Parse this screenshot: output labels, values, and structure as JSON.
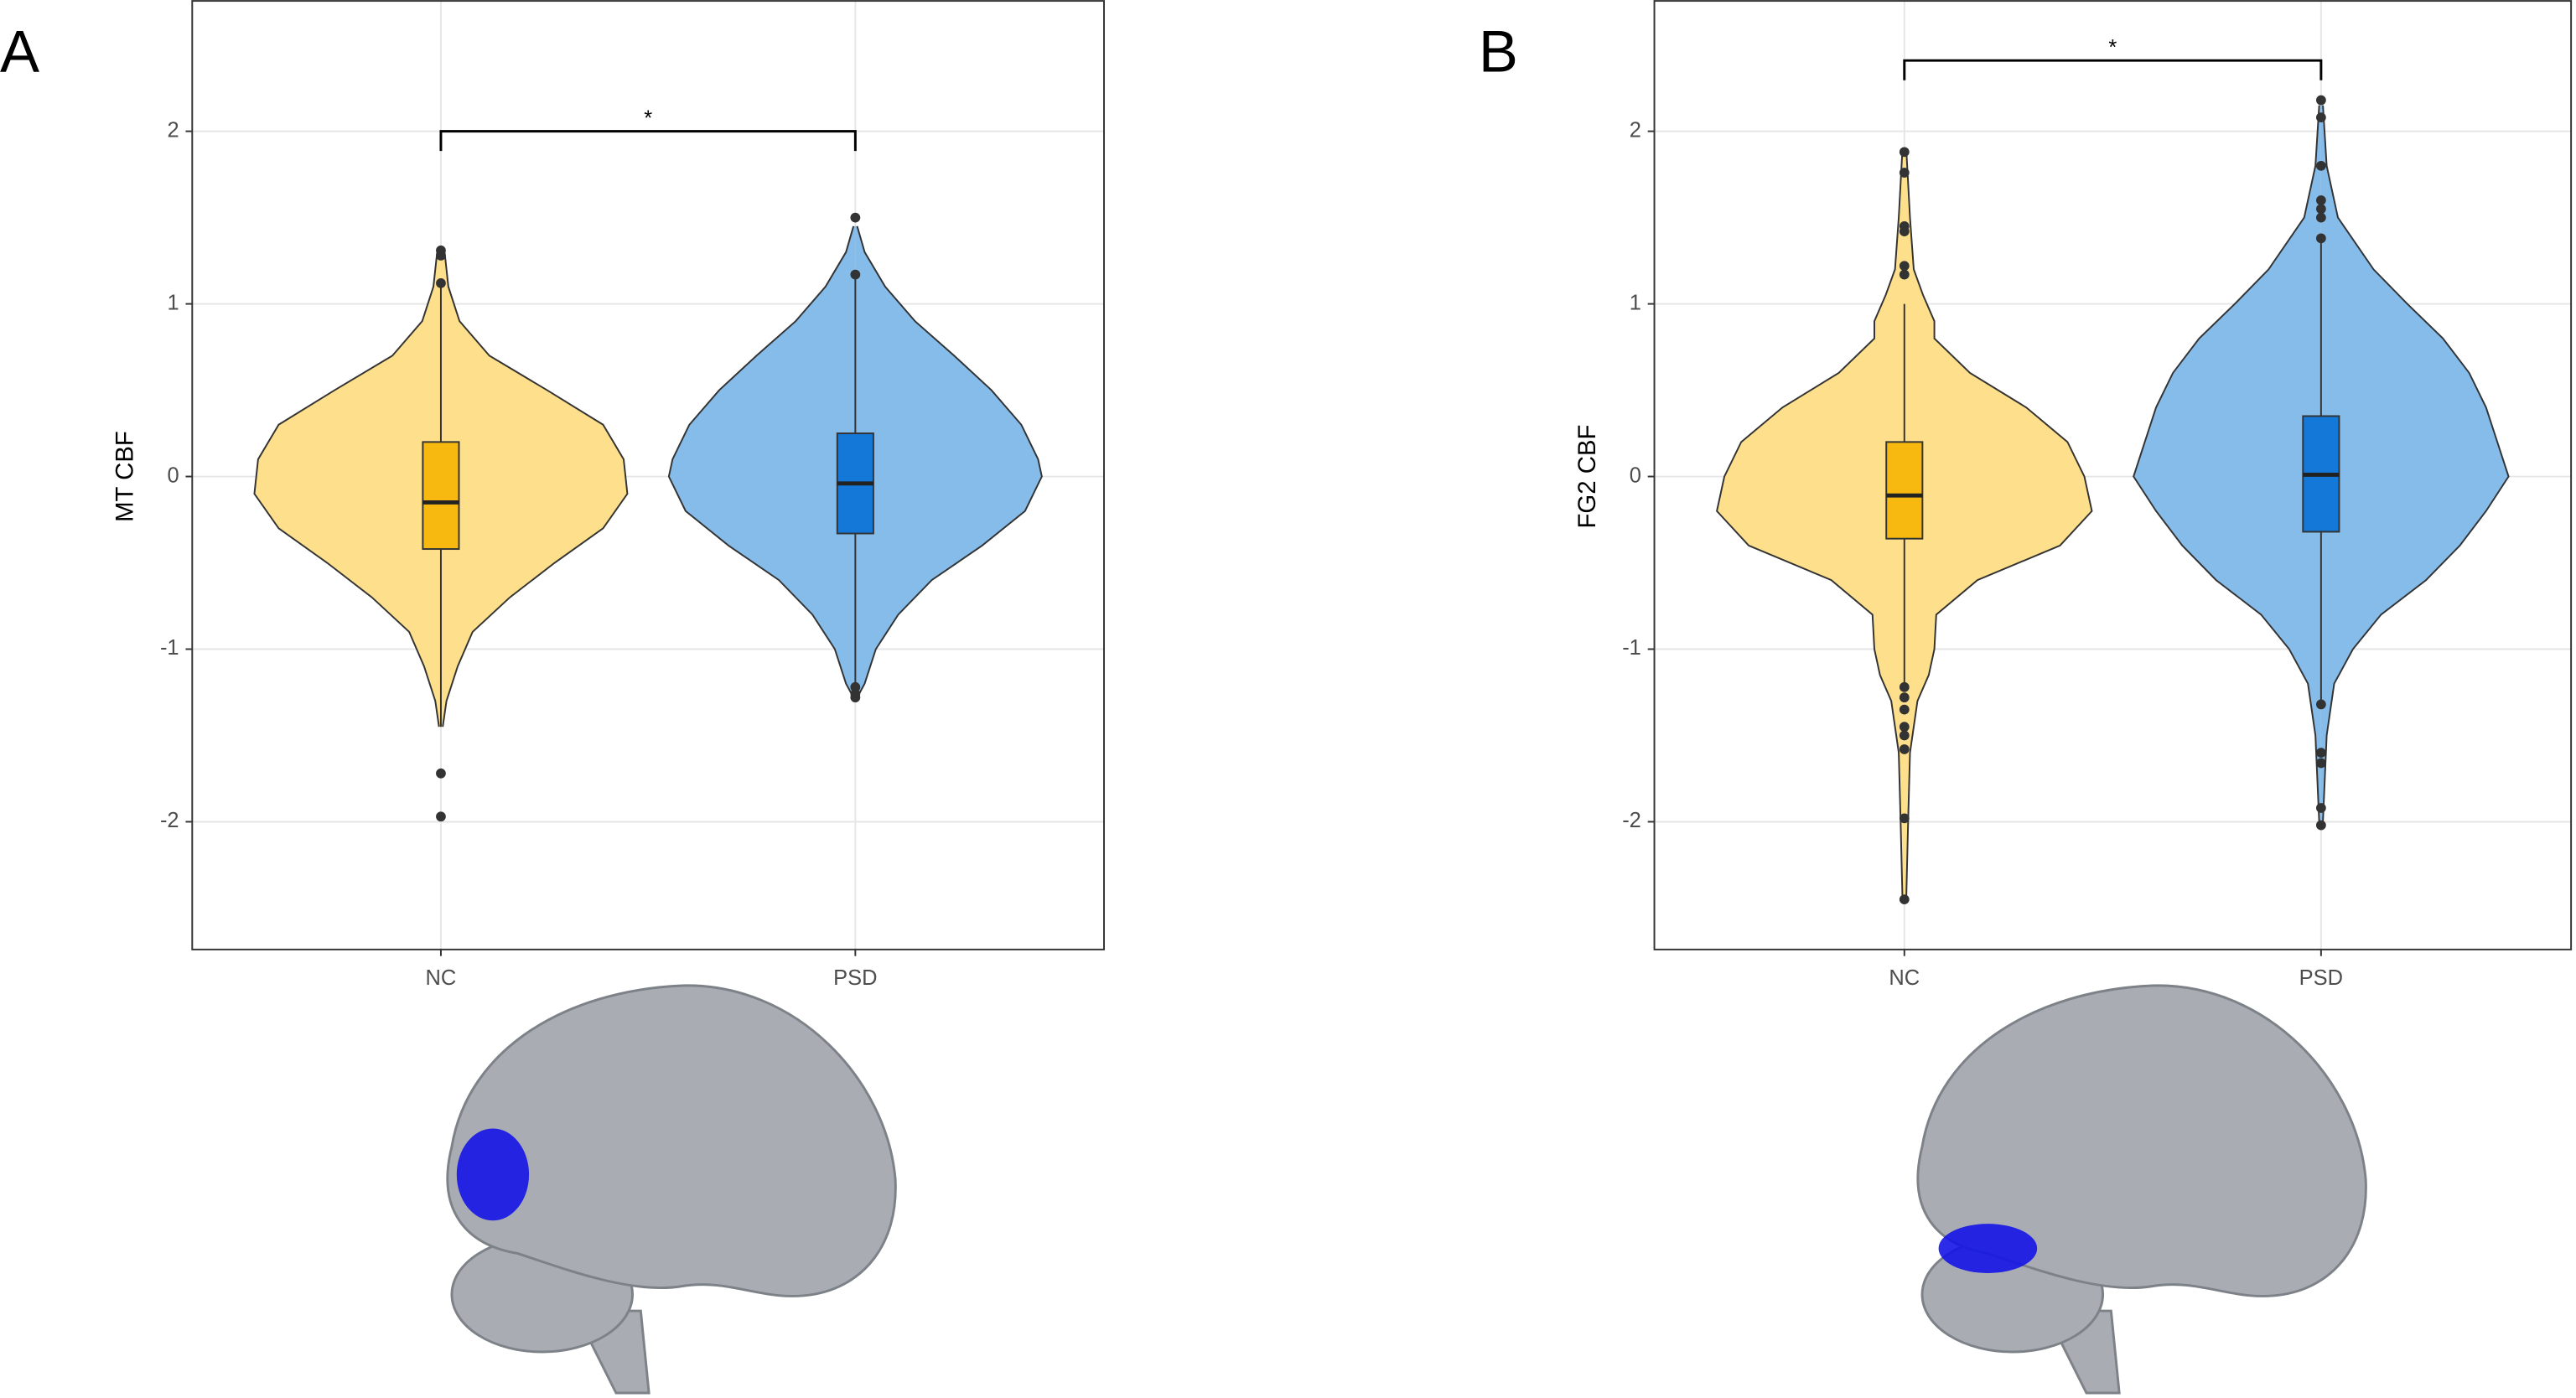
{
  "chart_data": [
    {
      "type": "violin",
      "panel": "A",
      "ylabel": "MT CBF",
      "categories": [
        "NC",
        "PSD"
      ],
      "ylim": [
        -2.74,
        2.76
      ],
      "yticks": [
        -2,
        -1,
        0,
        1,
        2
      ],
      "grid": true,
      "annotation": {
        "text": "*",
        "y": 2
      },
      "series": [
        {
          "color": "#fedf8b",
          "box_color": "#f7b90f",
          "violin": {
            "y": [
              1.3,
              1.1,
              0.9,
              0.7,
              0.5,
              0.3,
              0.1,
              -0.1,
              -0.3,
              -0.5,
              -0.7,
              -0.9,
              -1.1,
              -1.3,
              -1.45
            ],
            "width": [
              0.02,
              0.04,
              0.1,
              0.26,
              0.57,
              0.87,
              0.98,
              1,
              0.87,
              0.61,
              0.37,
              0.17,
              0.09,
              0.03,
              0.01
            ]
          },
          "box": {
            "whisker_low": -1.45,
            "q1": -0.42,
            "median": -0.15,
            "q3": 0.2,
            "whisker_high": 1.1
          },
          "outliers": [
            1.31,
            1.28,
            1.12,
            -1.72,
            -1.97
          ]
        },
        {
          "color": "#85bcea",
          "box_color": "#1478d8",
          "violin": {
            "y": [
              1.45,
              1.3,
              1.1,
              0.9,
              0.7,
              0.5,
              0.3,
              0.1,
              0,
              -0.2,
              -0.4,
              -0.6,
              -0.8,
              -1.0,
              -1.2,
              -1.28
            ],
            "width": [
              0.01,
              0.05,
              0.16,
              0.32,
              0.53,
              0.73,
              0.89,
              0.98,
              1,
              0.91,
              0.68,
              0.41,
              0.23,
              0.11,
              0.05,
              0.01
            ]
          },
          "box": {
            "whisker_low": -1.2,
            "q1": -0.33,
            "median": -0.04,
            "q3": 0.25,
            "whisker_high": 1.15
          },
          "outliers": [
            1.5,
            1.17,
            -1.22,
            -1.26,
            -1.28
          ]
        }
      ]
    },
    {
      "type": "violin",
      "panel": "B",
      "ylabel": "FG2 CBF",
      "categories": [
        "NC",
        "PSD"
      ],
      "ylim": [
        -2.74,
        2.76
      ],
      "yticks": [
        -2,
        -1,
        0,
        1,
        2
      ],
      "grid": true,
      "annotation": {
        "text": "*",
        "y": 2.41
      },
      "series": [
        {
          "color": "#fedf8b",
          "box_color": "#f7b90f",
          "violin": {
            "y": [
              1.9,
              1.5,
              1.2,
              1.05,
              0.9,
              0.8,
              0.6,
              0.4,
              0.2,
              0,
              -0.2,
              -0.4,
              -0.6,
              -0.8,
              -1.0,
              -1.15,
              -1.3,
              -1.6,
              -2.0,
              -2.45
            ],
            "width": [
              0.01,
              0.03,
              0.05,
              0.1,
              0.16,
              0.16,
              0.35,
              0.65,
              0.87,
              0.96,
              1,
              0.83,
              0.39,
              0.17,
              0.16,
              0.13,
              0.07,
              0.03,
              0.02,
              0.01
            ]
          },
          "box": {
            "whisker_low": -1.2,
            "q1": -0.36,
            "median": -0.11,
            "q3": 0.2,
            "whisker_high": 1.0
          },
          "outliers": [
            1.88,
            1.76,
            1.45,
            1.42,
            1.22,
            1.17,
            -1.22,
            -1.28,
            -1.35,
            -1.45,
            -1.5,
            -1.58,
            -1.98,
            -2.45
          ]
        },
        {
          "color": "#85bcea",
          "box_color": "#1478d8",
          "violin": {
            "y": [
              2.15,
              1.8,
              1.5,
              1.2,
              1.0,
              0.8,
              0.6,
              0.4,
              0.2,
              0,
              -0.2,
              -0.4,
              -0.6,
              -0.8,
              -1.0,
              -1.2,
              -1.5,
              -2.0
            ],
            "width": [
              0.01,
              0.03,
              0.09,
              0.28,
              0.46,
              0.65,
              0.79,
              0.88,
              0.94,
              1,
              0.88,
              0.74,
              0.56,
              0.32,
              0.17,
              0.07,
              0.03,
              0.01
            ]
          },
          "box": {
            "whisker_low": -1.3,
            "q1": -0.32,
            "median": 0.01,
            "q3": 0.35,
            "whisker_high": 1.4
          },
          "outliers": [
            2.18,
            2.08,
            1.8,
            1.6,
            1.55,
            1.5,
            1.38,
            -1.32,
            -1.6,
            -1.66,
            -1.92,
            -2.02
          ]
        }
      ]
    }
  ]
}
